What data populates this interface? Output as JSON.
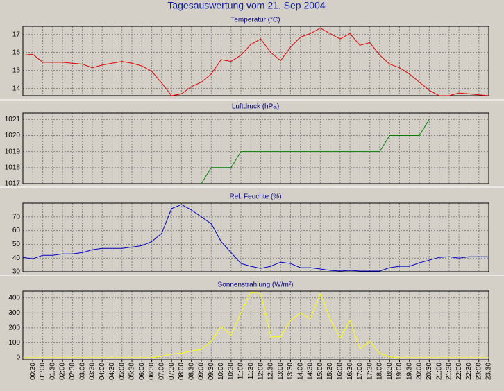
{
  "title": "Tagesauswertung vom 21. Sep 2004",
  "chart_data": [
    {
      "type": "line",
      "title": "Temperatur (°C)",
      "color": "#e00000",
      "ylim": [
        13.6,
        17.45
      ],
      "yticks": [
        14,
        15,
        16,
        17
      ],
      "grid": true,
      "values": [
        15.85,
        15.9,
        15.45,
        15.45,
        15.45,
        15.4,
        15.35,
        15.15,
        15.3,
        15.4,
        15.5,
        15.4,
        15.25,
        14.95,
        14.3,
        13.6,
        13.7,
        14.1,
        14.35,
        14.8,
        15.6,
        15.5,
        15.85,
        16.45,
        16.75,
        16.0,
        15.55,
        16.3,
        16.85,
        17.05,
        17.35,
        17.05,
        16.75,
        17.05,
        16.4,
        16.55,
        15.85,
        15.35,
        15.15,
        14.8,
        14.35,
        13.9,
        13.6,
        13.6,
        13.75,
        13.7,
        13.65,
        13.6
      ]
    },
    {
      "type": "line",
      "title": "Luftdruck (hPa)",
      "color": "#008000",
      "ylim": [
        1017,
        1021.4
      ],
      "yticks": [
        1017,
        1018,
        1019,
        1020,
        1021
      ],
      "grid": true,
      "values": [
        null,
        null,
        null,
        null,
        null,
        null,
        null,
        null,
        null,
        null,
        null,
        null,
        null,
        null,
        null,
        null,
        null,
        null,
        1017,
        1018,
        1018,
        1018,
        1019,
        1019,
        1019,
        1019,
        1019,
        1019,
        1019,
        1019,
        1019,
        1019,
        1019,
        1019,
        1019,
        1019,
        1019,
        1020,
        1020,
        1020,
        1020,
        1021,
        null,
        null,
        null,
        null,
        null,
        null
      ]
    },
    {
      "type": "line",
      "title": "Rel. Feuchte (%)",
      "color": "#0000c0",
      "ylim": [
        30,
        80
      ],
      "yticks": [
        30,
        40,
        50,
        60,
        70
      ],
      "grid": true,
      "values": [
        40.5,
        39.5,
        42,
        42,
        43,
        43,
        44,
        46,
        47,
        47,
        47,
        48,
        49,
        52,
        58,
        76,
        79,
        75,
        70,
        65,
        52,
        44,
        36,
        34,
        32.5,
        34,
        37,
        36,
        33,
        33,
        32,
        31,
        30.5,
        31,
        30.5,
        30.5,
        30.5,
        33,
        34,
        34,
        36.5,
        38.5,
        40.5,
        41,
        40,
        41,
        41,
        41
      ]
    },
    {
      "type": "line",
      "title": "Sonnenstrahlung (W/m²)",
      "color": "#ffff00",
      "ylim": [
        -14,
        445
      ],
      "yticks": [
        0,
        100,
        200,
        300,
        400
      ],
      "grid": true,
      "values": [
        0,
        0,
        0,
        0,
        0,
        0,
        0,
        0,
        0,
        0,
        0,
        0,
        0,
        0,
        10,
        25,
        30,
        45,
        55,
        110,
        210,
        150,
        300,
        440,
        430,
        140,
        140,
        250,
        300,
        260,
        430,
        260,
        130,
        250,
        60,
        110,
        30,
        5,
        0,
        0,
        0,
        0,
        0,
        0,
        0,
        0,
        0,
        0
      ],
      "categories": [
        null,
        "00:30",
        "01:00",
        "01:30",
        "02:00",
        "02:30",
        "03:00",
        "03:30",
        "04:00",
        "04:30",
        "05:00",
        "05:30",
        "06:00",
        "06:30",
        "07:00",
        "07:30",
        "08:00",
        "08:30",
        "09:00",
        "09:30",
        "10:00",
        "10:30",
        "11:00",
        "11:30",
        "12:00",
        "12:30",
        "13:00",
        "13:30",
        "14:00",
        "14:30",
        "15:00",
        "15:30",
        "16:00",
        "16:30",
        "17:00",
        "17:30",
        "18:00",
        "18:30",
        "19:00",
        "19:30",
        "20:00",
        "20:30",
        "21:00",
        "21:30",
        "22:00",
        "22:30",
        "23:00",
        "23:30"
      ]
    }
  ]
}
